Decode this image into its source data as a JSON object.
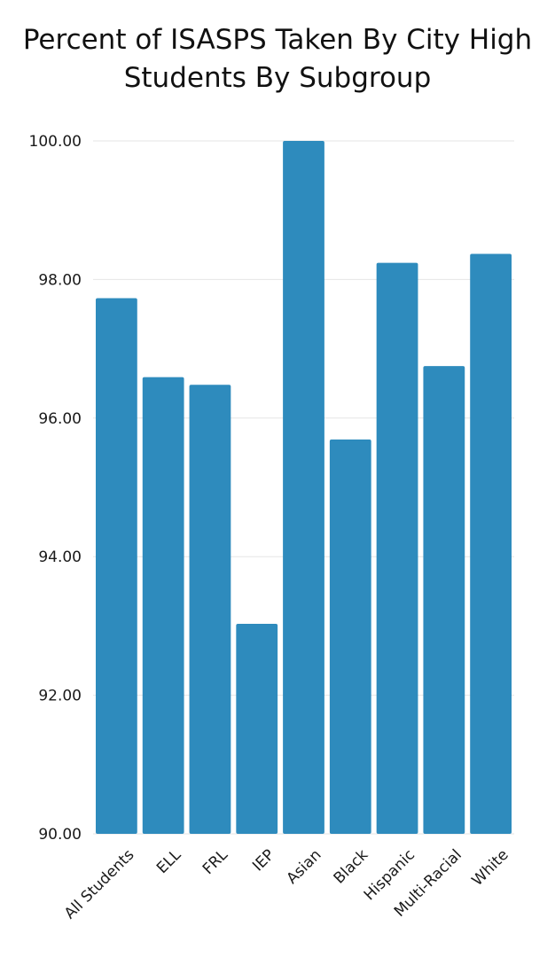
{
  "chart_data": {
    "type": "bar",
    "title": "Percent of ISASPS Taken By City High Students By Subgroup",
    "xlabel": "",
    "ylabel": "",
    "categories": [
      "All Students",
      "ELL",
      "FRL",
      "IEP",
      "Asian",
      "Black",
      "Hispanic",
      "Multi-Racial",
      "White"
    ],
    "values": [
      97.73,
      96.59,
      96.48,
      93.03,
      100.0,
      95.69,
      98.24,
      96.75,
      98.37
    ],
    "ylim": [
      90,
      100
    ],
    "yticks": [
      90,
      92,
      94,
      96,
      98,
      100
    ],
    "ytick_labels": [
      "90.00",
      "92.00",
      "94.00",
      "96.00",
      "98.00",
      "100.00"
    ],
    "grid": true,
    "legend": "none",
    "bar_color": "#2e8bbd",
    "grid_color": "#e6e6e6"
  }
}
